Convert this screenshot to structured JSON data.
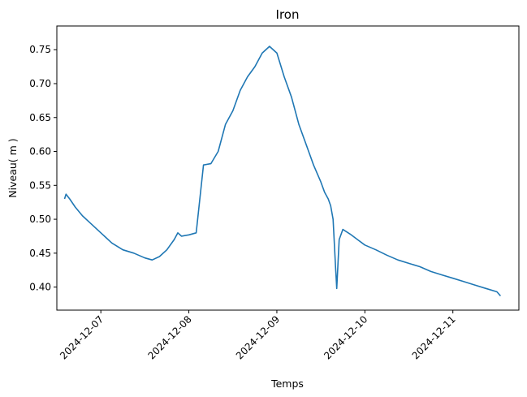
{
  "chart_data": {
    "type": "line",
    "title": "Iron",
    "xlabel": "Temps",
    "ylabel": "Niveau( m )",
    "x_ticks": [
      "2024-12-07",
      "2024-12-08",
      "2024-12-09",
      "2024-12-10",
      "2024-12-11"
    ],
    "y_ticks": [
      "0.40",
      "0.45",
      "0.50",
      "0.55",
      "0.60",
      "0.65",
      "0.70",
      "0.75"
    ],
    "xlim": [
      "2024-12-06 12:00",
      "2024-12-11 18:00"
    ],
    "ylim": [
      0.366,
      0.785
    ],
    "grid": false,
    "color": "#1f77b4",
    "series": [
      {
        "x": [
          "2024-12-06 14:06",
          "2024-12-06 14:30",
          "2024-12-06 15:30",
          "2024-12-06 17:00",
          "2024-12-06 19:00",
          "2024-12-06 21:00",
          "2024-12-07 00:00",
          "2024-12-07 03:00",
          "2024-12-07 06:00",
          "2024-12-07 09:00",
          "2024-12-07 12:00",
          "2024-12-07 14:00",
          "2024-12-07 16:00",
          "2024-12-07 18:00",
          "2024-12-07 20:00",
          "2024-12-07 21:00",
          "2024-12-07 22:00",
          "2024-12-07 23:00",
          "2024-12-08 00:00",
          "2024-12-08 02:00",
          "2024-12-08 04:00",
          "2024-12-08 06:00",
          "2024-12-08 08:00",
          "2024-12-08 10:00",
          "2024-12-08 12:00",
          "2024-12-08 14:00",
          "2024-12-08 16:00",
          "2024-12-08 18:00",
          "2024-12-08 20:00",
          "2024-12-08 22:00",
          "2024-12-09 00:00",
          "2024-12-09 02:00",
          "2024-12-09 04:00",
          "2024-12-09 06:00",
          "2024-12-09 08:00",
          "2024-12-09 10:00",
          "2024-12-09 12:00",
          "2024-12-09 13:00",
          "2024-12-09 14:00",
          "2024-12-09 14:40",
          "2024-12-09 15:20",
          "2024-12-09 16:00",
          "2024-12-09 16:20",
          "2024-12-09 17:00",
          "2024-12-09 18:00",
          "2024-12-09 20:00",
          "2024-12-09 22:00",
          "2024-12-10 00:00",
          "2024-12-10 03:00",
          "2024-12-10 06:00",
          "2024-12-10 09:00",
          "2024-12-10 12:00",
          "2024-12-10 15:00",
          "2024-12-10 18:00",
          "2024-12-10 21:00",
          "2024-12-11 00:00",
          "2024-12-11 03:00",
          "2024-12-11 06:00",
          "2024-12-11 09:00",
          "2024-12-11 12:00",
          "2024-12-11 13:00"
        ],
        "y": [
          0.53,
          0.537,
          0.53,
          0.518,
          0.505,
          0.495,
          0.48,
          0.465,
          0.455,
          0.45,
          0.443,
          0.44,
          0.445,
          0.455,
          0.47,
          0.48,
          0.475,
          0.476,
          0.477,
          0.48,
          0.58,
          0.582,
          0.6,
          0.64,
          0.66,
          0.69,
          0.71,
          0.725,
          0.745,
          0.755,
          0.745,
          0.71,
          0.68,
          0.64,
          0.61,
          0.58,
          0.555,
          0.54,
          0.53,
          0.52,
          0.5,
          0.43,
          0.398,
          0.47,
          0.485,
          0.478,
          0.47,
          0.462,
          0.455,
          0.447,
          0.44,
          0.435,
          0.43,
          0.423,
          0.418,
          0.413,
          0.408,
          0.403,
          0.398,
          0.393,
          0.387
        ]
      }
    ]
  }
}
